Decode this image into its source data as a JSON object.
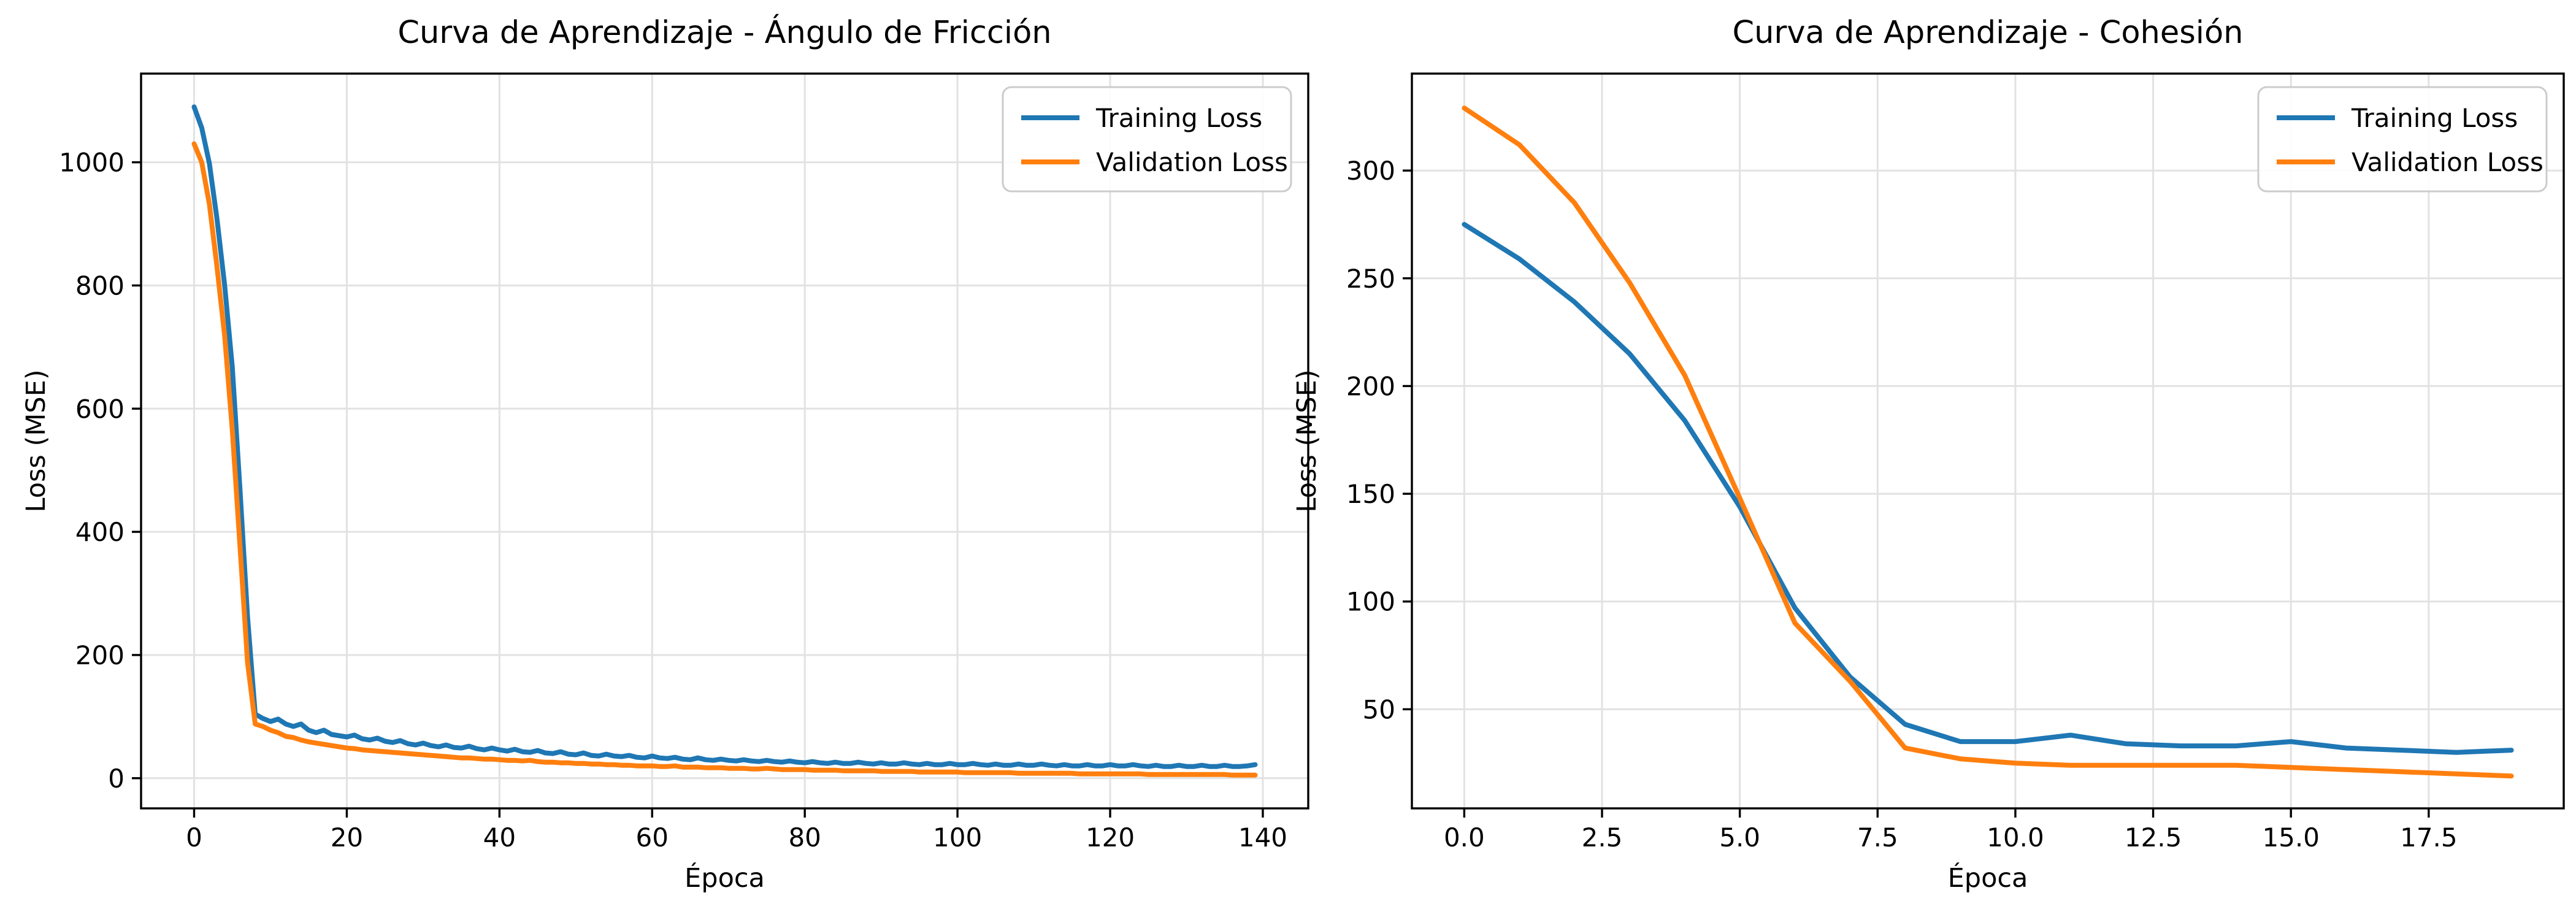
{
  "figure": {
    "background": "#ffffff",
    "text_color": "#000000",
    "grid_color": "#e2e2e2",
    "spine_color": "#000000",
    "legend_border_color": "#cccccc"
  },
  "chart_data": [
    {
      "type": "line",
      "title": "Curva de Aprendizaje - Ángulo de Fricción",
      "xlabel": "Época",
      "ylabel": "Loss (MSE)",
      "xlim": [
        -6.95,
        145.95
      ],
      "ylim": [
        -49,
        1144
      ],
      "xticks": [
        0,
        20,
        40,
        60,
        80,
        100,
        120,
        140
      ],
      "xtick_labels": [
        "0",
        "20",
        "40",
        "60",
        "80",
        "100",
        "120",
        "140"
      ],
      "yticks": [
        0,
        200,
        400,
        600,
        800,
        1000
      ],
      "ytick_labels": [
        "0",
        "200",
        "400",
        "600",
        "800",
        "1000"
      ],
      "grid": true,
      "legend": {
        "position": "upper right",
        "entries": [
          "Training Loss",
          "Validation Loss"
        ]
      },
      "x_start": 0,
      "x_step": 1,
      "series": [
        {
          "name": "Training Loss",
          "color": "#1f77b4",
          "y": [
            1090,
            1056,
            998,
            908,
            800,
            668,
            470,
            262,
            104,
            97,
            92,
            96,
            88,
            84,
            88,
            78,
            74,
            78,
            71,
            69,
            67,
            70,
            64,
            62,
            65,
            60,
            58,
            61,
            56,
            54,
            57,
            53,
            51,
            54,
            50,
            49,
            52,
            48,
            46,
            49,
            46,
            44,
            47,
            43,
            42,
            45,
            41,
            40,
            43,
            39,
            38,
            41,
            37,
            36,
            39,
            36,
            35,
            37,
            34,
            33,
            36,
            33,
            32,
            34,
            31,
            30,
            33,
            30,
            29,
            31,
            29,
            28,
            30,
            28,
            27,
            29,
            27,
            26,
            28,
            26,
            25,
            27,
            25,
            24,
            26,
            24,
            24,
            26,
            24,
            23,
            25,
            23,
            23,
            25,
            23,
            22,
            24,
            22,
            22,
            24,
            22,
            22,
            24,
            22,
            21,
            23,
            21,
            21,
            23,
            21,
            21,
            23,
            21,
            20,
            22,
            20,
            20,
            22,
            20,
            20,
            22,
            20,
            20,
            22,
            20,
            19,
            21,
            19,
            19,
            21,
            19,
            19,
            21,
            19,
            19,
            21,
            19,
            19,
            20,
            22
          ]
        },
        {
          "name": "Validation Loss",
          "color": "#ff7f0e",
          "y": [
            1030,
            1000,
            932,
            830,
            718,
            566,
            378,
            188,
            88,
            84,
            78,
            74,
            68,
            66,
            62,
            59,
            57,
            55,
            53,
            51,
            49,
            48,
            46,
            45,
            44,
            43,
            42,
            41,
            40,
            39,
            38,
            37,
            36,
            35,
            34,
            33,
            33,
            32,
            31,
            31,
            30,
            29,
            29,
            28,
            29,
            27,
            26,
            26,
            25,
            25,
            24,
            24,
            23,
            23,
            22,
            22,
            21,
            21,
            20,
            20,
            20,
            19,
            19,
            20,
            18,
            18,
            18,
            17,
            17,
            17,
            16,
            16,
            16,
            15,
            15,
            16,
            15,
            14,
            14,
            14,
            14,
            13,
            13,
            13,
            13,
            12,
            12,
            12,
            12,
            12,
            11,
            11,
            11,
            11,
            11,
            10,
            10,
            10,
            10,
            10,
            10,
            9,
            9,
            9,
            9,
            9,
            9,
            9,
            8,
            8,
            8,
            8,
            8,
            8,
            8,
            8,
            7,
            7,
            7,
            7,
            7,
            7,
            7,
            7,
            7,
            6,
            6,
            6,
            6,
            6,
            6,
            6,
            6,
            6,
            6,
            6,
            5,
            5,
            5,
            5
          ]
        }
      ]
    },
    {
      "type": "line",
      "title": "Curva de Aprendizaje - Cohesión",
      "xlabel": "Época",
      "ylabel": "Loss (MSE)",
      "xlim": [
        -0.95,
        19.95
      ],
      "ylim": [
        4,
        345
      ],
      "xticks": [
        0,
        2.5,
        5,
        7.5,
        10,
        12.5,
        15,
        17.5
      ],
      "xtick_labels": [
        "0.0",
        "2.5",
        "5.0",
        "7.5",
        "10.0",
        "12.5",
        "15.0",
        "17.5"
      ],
      "yticks": [
        50,
        100,
        150,
        200,
        250,
        300
      ],
      "ytick_labels": [
        "50",
        "100",
        "150",
        "200",
        "250",
        "300"
      ],
      "grid": true,
      "legend": {
        "position": "upper right",
        "entries": [
          "Training Loss",
          "Validation Loss"
        ]
      },
      "x": [
        0,
        1,
        2,
        3,
        4,
        5,
        6,
        7,
        8,
        9,
        10,
        11,
        12,
        13,
        14,
        15,
        16,
        17,
        18,
        19
      ],
      "series": [
        {
          "name": "Training Loss",
          "color": "#1f77b4",
          "y": [
            275,
            259,
            239,
            215,
            184,
            144,
            97,
            65,
            43,
            35,
            35,
            38,
            34,
            33,
            33,
            35,
            32,
            31,
            30,
            31
          ]
        },
        {
          "name": "Validation Loss",
          "color": "#ff7f0e",
          "y": [
            329,
            312,
            285,
            248,
            205,
            148,
            90,
            63,
            32,
            27,
            25,
            24,
            24,
            24,
            24,
            23,
            22,
            21,
            20,
            19
          ]
        }
      ]
    }
  ]
}
